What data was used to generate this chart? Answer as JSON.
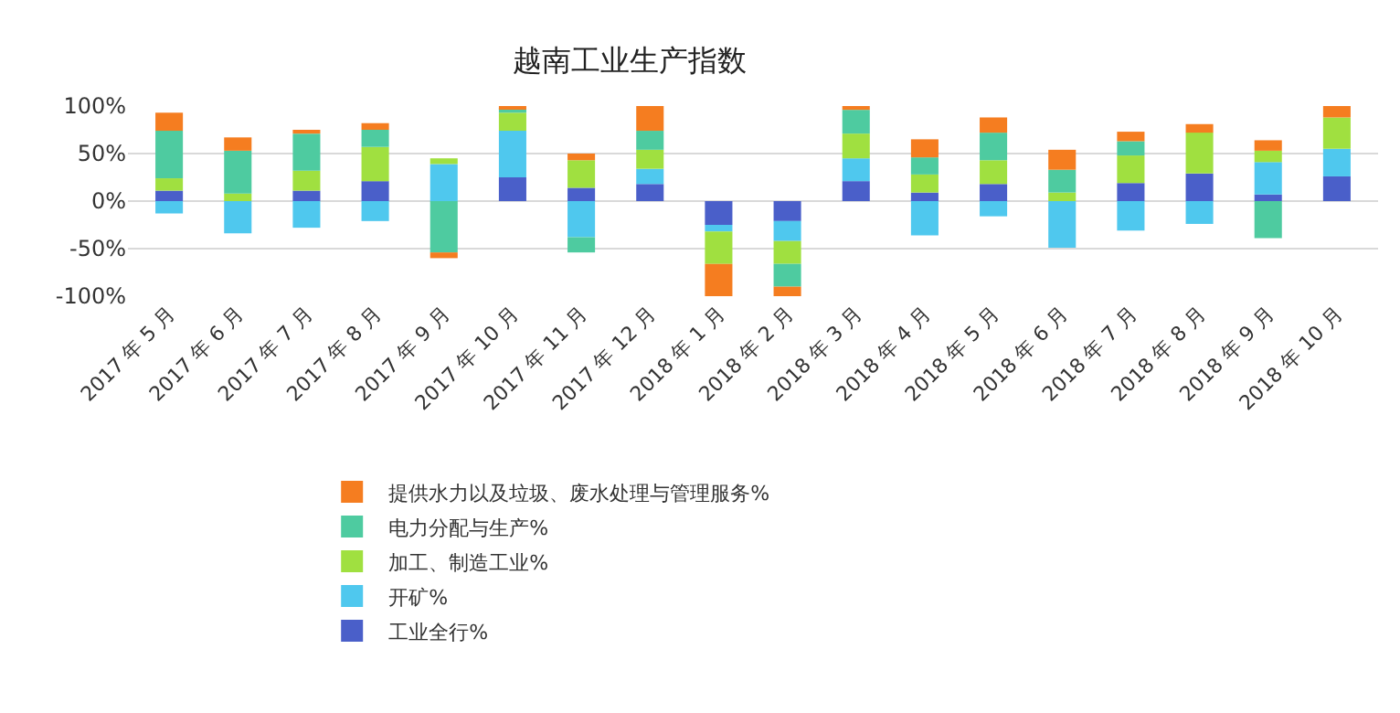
{
  "chart_data": {
    "type": "bar",
    "stacked": true,
    "title": "越南工业生产指数",
    "categories": [
      "2017 年 5 月",
      "2017 年 6 月",
      "2017 年 7 月",
      "2017 年 8 月",
      "2017 年 9 月",
      "2017 年 10 月",
      "2017 年 11 月",
      "2017 年 12 月",
      "2018 年 1 月",
      "2018 年 2 月",
      "2018 年 3 月",
      "2018 年 4 月",
      "2018 年 5 月",
      "2018 年 6 月",
      "2018 年 7 月",
      "2018 年 8 月",
      "2018 年 9 月",
      "2018 年 10 月"
    ],
    "series": [
      {
        "name": "工业全行%",
        "color": "#4a5fc9",
        "values": [
          11,
          null,
          11,
          21,
          0,
          25,
          14,
          18,
          -25,
          -21,
          21,
          9,
          18,
          null,
          19,
          29,
          7,
          26
        ]
      },
      {
        "name": "开矿%",
        "color": "#4fc8ee",
        "values": [
          -13,
          -34,
          -28,
          -21,
          39,
          49,
          -38,
          16,
          -7,
          -21,
          24,
          -36,
          -16,
          -49,
          -31,
          -24,
          34,
          29
        ]
      },
      {
        "name": "加工、制造工业%",
        "color": "#a0e040",
        "values": [
          13,
          8,
          21,
          36,
          6,
          19,
          29,
          20,
          -34,
          -24,
          26,
          19,
          25,
          9,
          29,
          43,
          12,
          33
        ]
      },
      {
        "name": "电力分配与生产%",
        "color": "#4ecba0",
        "values": [
          50,
          45,
          39,
          18,
          -54,
          5,
          -16,
          20,
          0,
          -24,
          25,
          18,
          29,
          24,
          15,
          0,
          -39,
          0
        ]
      },
      {
        "name": "提供水力以及垃圾、废水处理与管理服务%",
        "color": "#f57d20",
        "values": [
          19,
          14,
          4,
          7,
          -6,
          2,
          7,
          26,
          -34,
          -10,
          4,
          19,
          16,
          21,
          10,
          9,
          11,
          12
        ]
      }
    ],
    "ylim": [
      -100,
      100
    ],
    "yticks": [
      {
        "value": -100,
        "label": "-100%"
      },
      {
        "value": -50,
        "label": "-50%"
      },
      {
        "value": 0,
        "label": "0%"
      },
      {
        "value": 50,
        "label": "50%"
      },
      {
        "value": 100,
        "label": "100%"
      }
    ],
    "grid": "y",
    "legend": "bottom"
  }
}
